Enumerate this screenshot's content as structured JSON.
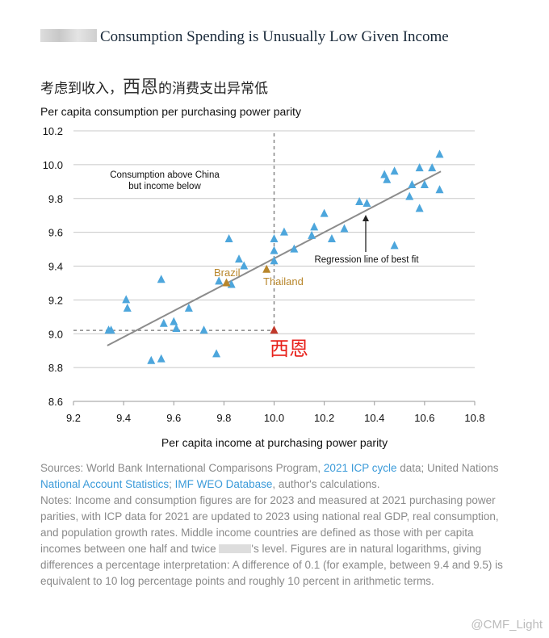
{
  "title": "Consumption Spending is Unusually Low Given Income",
  "subtitle_pre": "考虑到收入，",
  "subtitle_name": "西恩",
  "subtitle_post": "的消费支出异常低",
  "chart_data": {
    "type": "scatter",
    "ylabel": "Per capita consumption per purchasing power parity",
    "xlabel": "Per capita income at purchasing power parity",
    "xlim": [
      9.2,
      10.8
    ],
    "ylim": [
      8.6,
      10.2
    ],
    "xticks": [
      "9.2",
      "9.4",
      "9.6",
      "9.8",
      "10.0",
      "10.2",
      "10.4",
      "10.6",
      "10.8"
    ],
    "yticks": [
      "8.6",
      "8.8",
      "9.0",
      "9.2",
      "9.4",
      "9.6",
      "9.8",
      "10.0",
      "10.2"
    ],
    "grid": "horizontal",
    "series_color": "#4da6dc",
    "points": [
      [
        9.34,
        9.02
      ],
      [
        9.35,
        9.02
      ],
      [
        9.41,
        9.2
      ],
      [
        9.415,
        9.15
      ],
      [
        9.55,
        9.32
      ],
      [
        9.51,
        8.84
      ],
      [
        9.55,
        8.85
      ],
      [
        9.56,
        9.06
      ],
      [
        9.6,
        9.07
      ],
      [
        9.61,
        9.03
      ],
      [
        9.66,
        9.15
      ],
      [
        9.72,
        9.02
      ],
      [
        9.77,
        8.88
      ],
      [
        9.82,
        9.56
      ],
      [
        9.78,
        9.31
      ],
      [
        9.83,
        9.29
      ],
      [
        9.86,
        9.44
      ],
      [
        9.88,
        9.4
      ],
      [
        10.0,
        9.56
      ],
      [
        10.0,
        9.49
      ],
      [
        10.0,
        9.43
      ],
      [
        10.04,
        9.6
      ],
      [
        10.08,
        9.5
      ],
      [
        10.15,
        9.58
      ],
      [
        10.16,
        9.63
      ],
      [
        10.2,
        9.71
      ],
      [
        10.23,
        9.56
      ],
      [
        10.28,
        9.62
      ],
      [
        10.34,
        9.78
      ],
      [
        10.37,
        9.77
      ],
      [
        10.44,
        9.94
      ],
      [
        10.45,
        9.91
      ],
      [
        10.48,
        9.96
      ],
      [
        10.48,
        9.52
      ],
      [
        10.54,
        9.81
      ],
      [
        10.55,
        9.88
      ],
      [
        10.58,
        9.74
      ],
      [
        10.58,
        9.98
      ],
      [
        10.6,
        9.88
      ],
      [
        10.63,
        9.98
      ],
      [
        10.66,
        10.06
      ],
      [
        10.66,
        9.85
      ]
    ],
    "highlighted": [
      {
        "name": "Brazil",
        "x": 9.81,
        "y": 9.3,
        "color": "#b8862b"
      },
      {
        "name": "Thailand",
        "x": 9.97,
        "y": 9.38,
        "color": "#b8862b"
      },
      {
        "name": "西恩",
        "x": 10.0,
        "y": 9.02,
        "color": "#c0392b"
      }
    ],
    "regression": {
      "x": [
        9.335,
        10.665
      ],
      "y": [
        8.93,
        9.96
      ]
    },
    "annotations": [
      "Consumption above China",
      "but income below",
      "Regression line of best fit"
    ]
  },
  "notes": {
    "sources_label": "Sources:  World Bank International Comparisons Program, ",
    "link1": "2021 ICP cycle",
    "s2": " data; United Nations ",
    "link2": "National Account Statistics",
    "s3": "; ",
    "link3": "IMF WEO Database",
    "s4": ", author's calculations.",
    "notes_a": "Notes:  Income and consumption figures are for 2023 and measured at 2021 purchasing power parities, with ICP data for 2021 are updated to 2023 using national real GDP, real consumption, and population growth rates. Middle income countries are defined as those with per capita incomes between one half and twice ",
    "notes_b": "'s level. Figures are in natural logarithms, giving differences a percentage interpretation: A difference of 0.1 (for example, between 9.4 and 9.5) is equivalent to 10 log percentage points and roughly 10 percent in arithmetic terms."
  },
  "watermark": "@CMF_Light"
}
